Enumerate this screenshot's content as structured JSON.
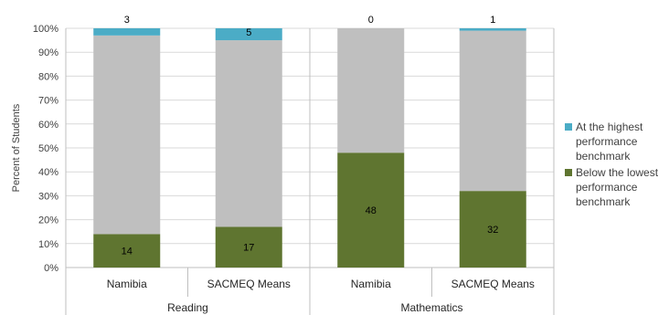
{
  "chart_data": {
    "type": "bar",
    "stacked": true,
    "ylabel": "Percent of Students",
    "ylim": [
      0,
      100
    ],
    "yticks": [
      "0%",
      "10%",
      "20%",
      "30%",
      "40%",
      "50%",
      "60%",
      "70%",
      "80%",
      "90%",
      "100%"
    ],
    "groups": [
      {
        "name": "Reading",
        "categories": [
          "Namibia",
          "SACMEQ Means"
        ]
      },
      {
        "name": "Mathematics",
        "categories": [
          "Namibia",
          "SACMEQ Means"
        ]
      }
    ],
    "categories": [
      "Namibia",
      "SACMEQ Means",
      "Namibia",
      "SACMEQ Means"
    ],
    "series": [
      {
        "name": "Below the lowest performance benchmark",
        "values": [
          14,
          17,
          48,
          32
        ],
        "color": "#5f7530"
      },
      {
        "name": "",
        "values": [
          83,
          78,
          52,
          67
        ],
        "color": "#bfbfbf"
      },
      {
        "name": "At the highest performance benchmark",
        "values": [
          3,
          5,
          0,
          1
        ],
        "color": "#4bacc6"
      }
    ],
    "legend_position": "right"
  }
}
